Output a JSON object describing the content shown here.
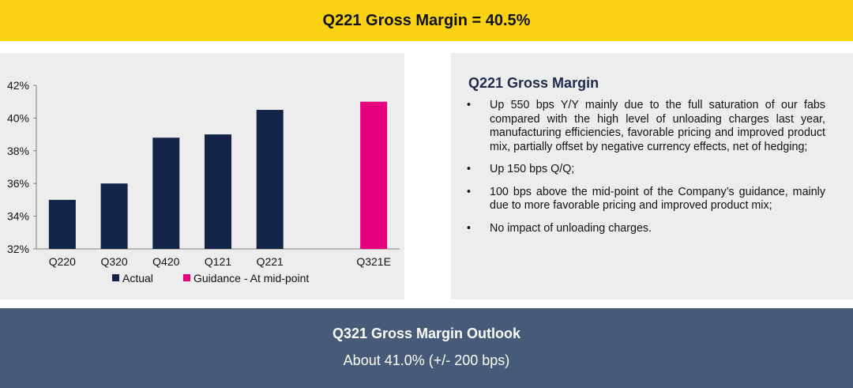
{
  "header": {
    "title": "Q221 Gross Margin = 40.5%"
  },
  "colors": {
    "banner": "#f9d313",
    "actual": "#132448",
    "guidance": "#e6007e",
    "outlook": "#475a78"
  },
  "chart_data": {
    "type": "bar",
    "categories": [
      "Q220",
      "Q320",
      "Q420",
      "Q121",
      "Q221",
      "",
      "Q321E"
    ],
    "series": [
      {
        "name": "Actual",
        "values": [
          35.0,
          36.0,
          38.8,
          39.0,
          40.5,
          null,
          null
        ]
      },
      {
        "name": "Guidance - At mid-point",
        "values": [
          null,
          null,
          null,
          null,
          null,
          null,
          41.0
        ]
      }
    ],
    "ylim": [
      32,
      42
    ],
    "yticks": [
      32,
      34,
      36,
      38,
      40,
      42
    ],
    "ytick_labels": [
      "32%",
      "34%",
      "36%",
      "38%",
      "40%",
      "42%"
    ],
    "legend_position": "bottom",
    "grid": false
  },
  "details": {
    "title": "Q221 Gross Margin",
    "bullet_char": "•",
    "bullets": [
      "Up 550 bps Y/Y mainly due to the full saturation of our fabs compared with the high level of unloading charges last year, manufacturing efficiencies, favorable pricing and improved product mix, partially offset by negative currency effects, net of hedging;",
      "Up 150 bps Q/Q;",
      "100 bps above the mid-point of the Company’s guidance, mainly due to more favorable pricing and improved product mix;",
      "No impact of unloading charges."
    ]
  },
  "outlook": {
    "title": "Q321 Gross Margin Outlook",
    "value": "About 41.0% (+/- 200 bps)"
  }
}
